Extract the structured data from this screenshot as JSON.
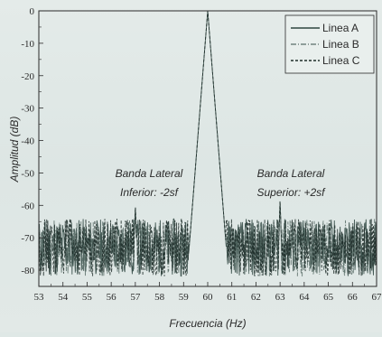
{
  "chart_data": {
    "type": "line",
    "title": "",
    "xlabel": "Frecuencia (Hz)",
    "ylabel": "Amplitud (dB)",
    "xlim": [
      53,
      67
    ],
    "ylim": [
      -85,
      0
    ],
    "x_ticks": [
      "53",
      "54",
      "55",
      "56",
      "57",
      "58",
      "59",
      "60",
      "61",
      "62",
      "63",
      "64",
      "65",
      "66",
      "67"
    ],
    "y_ticks": [
      "0",
      "-10",
      "-20",
      "-30",
      "-40",
      "-50",
      "-60",
      "-70",
      "-80"
    ],
    "grid": false,
    "legend_position": "top-right",
    "series": [
      {
        "name": "Linea A",
        "style": "solid",
        "color": "#2f4640"
      },
      {
        "name": "Linea B",
        "style": "dash-dot",
        "color": "#5a6e68"
      },
      {
        "name": "Linea C",
        "style": "dashed",
        "color": "#1f2e2a"
      }
    ],
    "peaks": [
      {
        "x": 57,
        "y": -60
      },
      {
        "x": 60,
        "y": 0
      },
      {
        "x": 63,
        "y": -58
      }
    ],
    "noise_floor": {
      "range": [
        -82,
        -65
      ],
      "typical": -73
    },
    "annotations": {
      "left": {
        "line1": "Banda Lateral",
        "line2": "Inferior: -2sf"
      },
      "right": {
        "line1": "Banda Lateral",
        "line2": "Superior: +2sf"
      }
    }
  }
}
